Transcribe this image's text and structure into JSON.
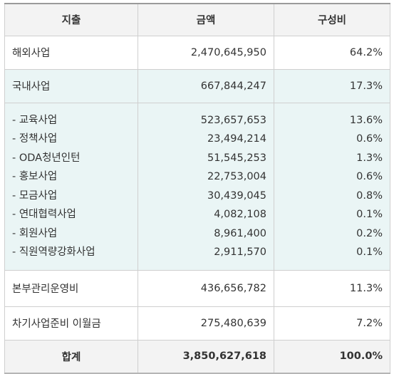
{
  "headers": {
    "item": "지출",
    "amount": "금액",
    "ratio": "구성비"
  },
  "overseas": {
    "label": "해외사업",
    "amount": "2,470,645,950",
    "ratio": "64.2%"
  },
  "domestic": {
    "label": "국내사업",
    "amount": "667,844,247",
    "ratio": "17.3%"
  },
  "domestic_items": [
    {
      "label": "- 교육사업",
      "amount": "523,657,653",
      "ratio": "13.6%"
    },
    {
      "label": "- 정책사업",
      "amount": "23,494,214",
      "ratio": "0.6%"
    },
    {
      "label": "- ODA청년인턴",
      "amount": "51,545,253",
      "ratio": "1.3%"
    },
    {
      "label": "- 홍보사업",
      "amount": "22,753,004",
      "ratio": "0.6%"
    },
    {
      "label": "- 모금사업",
      "amount": "30,439,045",
      "ratio": "0.8%"
    },
    {
      "label": "- 연대협력사업",
      "amount": "4,082,108",
      "ratio": "0.1%"
    },
    {
      "label": "- 회원사업",
      "amount": "8,961,400",
      "ratio": "0.2%"
    },
    {
      "label": "- 직원역량강화사업",
      "amount": "2,911,570",
      "ratio": "0.1%"
    }
  ],
  "hq": {
    "label": "본부관리운영비",
    "amount": "436,656,782",
    "ratio": "11.3%"
  },
  "carryover": {
    "label": "차기사업준비 이월금",
    "amount": "275,480,639",
    "ratio": "7.2%"
  },
  "total": {
    "label": "합계",
    "amount": "3,850,627,618",
    "ratio": "100.0%"
  }
}
